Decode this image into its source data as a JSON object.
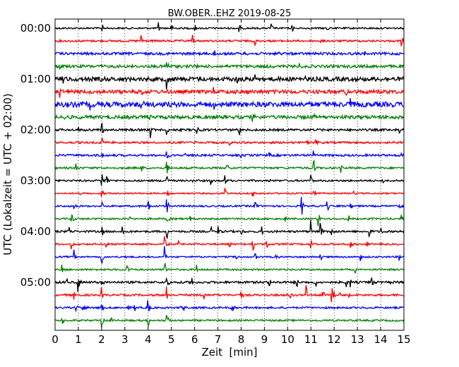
{
  "chart_data": {
    "type": "line",
    "title": "BW.OBER..EHZ 2019-08-25",
    "xlabel": "Zeit  [min]",
    "ylabel": "UTC (Lokalzeit = UTC + 02:00)",
    "xlim": [
      0,
      15
    ],
    "xticks": [
      0,
      1,
      2,
      3,
      4,
      5,
      6,
      7,
      8,
      9,
      10,
      11,
      12,
      13,
      14,
      15
    ],
    "xtick_labels": [
      "0",
      "1",
      "2",
      "3",
      "4",
      "5",
      "6",
      "7",
      "8",
      "9",
      "10",
      "11",
      "12",
      "13",
      "14",
      "15"
    ],
    "yticks": [
      {
        "label": "00:00",
        "trace": 0
      },
      {
        "label": "01:00",
        "trace": 4
      },
      {
        "label": "02:00",
        "trace": 8
      },
      {
        "label": "03:00",
        "trace": 12
      },
      {
        "label": "04:00",
        "trace": 16
      },
      {
        "label": "05:00",
        "trace": 20
      }
    ],
    "grid": {
      "x": true,
      "y": false,
      "style": "dotted"
    },
    "trace_colors": [
      "#000000",
      "#ff0000",
      "#0000ff",
      "#008000"
    ],
    "series": [
      {
        "start": "00:00",
        "color": "#000000",
        "noise": 1.2,
        "events": [
          [
            2.0,
            14
          ],
          [
            4.45,
            10
          ],
          [
            5.0,
            9
          ],
          [
            6.0,
            9
          ],
          [
            7.9,
            12
          ],
          [
            9.3,
            8
          ],
          [
            10.2,
            6
          ],
          [
            11.7,
            5
          ]
        ]
      },
      {
        "start": "00:15",
        "color": "#ff0000",
        "noise": 1.4,
        "events": [
          [
            3.7,
            12
          ],
          [
            5.9,
            10
          ],
          [
            8.6,
            10
          ],
          [
            11.4,
            5
          ],
          [
            14.9,
            9
          ]
        ]
      },
      {
        "start": "00:30",
        "color": "#0000ff",
        "noise": 1.8,
        "events": [
          [
            6.8,
            14
          ],
          [
            8.1,
            8
          ],
          [
            9.6,
            5
          ],
          [
            13.3,
            8
          ]
        ]
      },
      {
        "start": "00:45",
        "color": "#008000",
        "noise": 2.0,
        "events": [
          [
            0.2,
            7
          ],
          [
            3.2,
            6
          ],
          [
            4.8,
            10
          ],
          [
            6.0,
            6
          ],
          [
            10.5,
            6
          ]
        ]
      },
      {
        "start": "01:00",
        "color": "#000000",
        "noise": 3.0,
        "events": [
          [
            0.3,
            10
          ],
          [
            2.0,
            14
          ],
          [
            4.8,
            14
          ],
          [
            7.8,
            12
          ],
          [
            8.6,
            8
          ],
          [
            10.7,
            8
          ]
        ]
      },
      {
        "start": "01:15",
        "color": "#ff0000",
        "noise": 2.6,
        "events": [
          [
            0.2,
            12
          ],
          [
            3.7,
            10
          ],
          [
            6.8,
            8
          ],
          [
            12.5,
            9
          ],
          [
            13.7,
            7
          ]
        ]
      },
      {
        "start": "01:30",
        "color": "#0000ff",
        "noise": 3.6,
        "events": [
          [
            1.5,
            9
          ],
          [
            2.0,
            10
          ],
          [
            3.7,
            8
          ],
          [
            6.8,
            12
          ],
          [
            12.7,
            8
          ]
        ]
      },
      {
        "start": "01:45",
        "color": "#008000",
        "noise": 2.4,
        "events": [
          [
            0.4,
            6
          ],
          [
            4.0,
            10
          ],
          [
            8.5,
            5
          ],
          [
            11.1,
            8
          ]
        ]
      },
      {
        "start": "02:00",
        "color": "#000000",
        "noise": 1.6,
        "events": [
          [
            1.0,
            6
          ],
          [
            2.0,
            14
          ],
          [
            4.1,
            12
          ],
          [
            4.8,
            10
          ],
          [
            6.1,
            6
          ],
          [
            7.9,
            14
          ],
          [
            14.8,
            7
          ]
        ]
      },
      {
        "start": "02:15",
        "color": "#ff0000",
        "noise": 1.4,
        "events": [
          [
            2.0,
            12
          ],
          [
            6.0,
            6
          ],
          [
            7.5,
            7
          ],
          [
            10.8,
            6
          ],
          [
            11.2,
            6
          ]
        ]
      },
      {
        "start": "02:30",
        "color": "#0000ff",
        "noise": 1.5,
        "events": [
          [
            2.0,
            10
          ],
          [
            4.8,
            14
          ],
          [
            5.6,
            6
          ],
          [
            8.0,
            8
          ],
          [
            9.2,
            6
          ],
          [
            11.1,
            7
          ],
          [
            14.9,
            6
          ]
        ]
      },
      {
        "start": "02:45",
        "color": "#008000",
        "noise": 1.3,
        "events": [
          [
            0.9,
            8
          ],
          [
            3.7,
            9
          ],
          [
            4.8,
            14
          ],
          [
            7.4,
            7
          ],
          [
            11.1,
            20
          ],
          [
            12.3,
            6
          ]
        ]
      },
      {
        "start": "03:00",
        "color": "#000000",
        "noise": 1.3,
        "events": [
          [
            2.0,
            16
          ],
          [
            2.2,
            12
          ],
          [
            4.8,
            14
          ],
          [
            5.8,
            10
          ],
          [
            6.7,
            8
          ],
          [
            7.3,
            9
          ],
          [
            9.2,
            7
          ],
          [
            11.0,
            9
          ],
          [
            14.1,
            6
          ]
        ]
      },
      {
        "start": "03:15",
        "color": "#ff0000",
        "noise": 1.0,
        "events": [
          [
            1.0,
            6
          ],
          [
            2.0,
            10
          ],
          [
            4.8,
            14
          ],
          [
            7.3,
            14
          ],
          [
            8.5,
            6
          ],
          [
            11.1,
            8
          ],
          [
            12.8,
            7
          ]
        ]
      },
      {
        "start": "03:30",
        "color": "#0000ff",
        "noise": 1.2,
        "events": [
          [
            0.8,
            9
          ],
          [
            2.0,
            14
          ],
          [
            4.0,
            10
          ],
          [
            4.8,
            16
          ],
          [
            8.6,
            12
          ],
          [
            10.6,
            16
          ],
          [
            11.7,
            14
          ],
          [
            12.7,
            8
          ],
          [
            14.8,
            6
          ]
        ]
      },
      {
        "start": "03:45",
        "color": "#008000",
        "noise": 1.2,
        "events": [
          [
            0.7,
            14
          ],
          [
            3.2,
            6
          ],
          [
            4.8,
            16
          ],
          [
            5.8,
            7
          ],
          [
            9.9,
            6
          ],
          [
            11.3,
            18
          ],
          [
            12.6,
            12
          ],
          [
            14.9,
            6
          ]
        ]
      },
      {
        "start": "04:00",
        "color": "#000000",
        "noise": 1.4,
        "events": [
          [
            0.6,
            10
          ],
          [
            2.0,
            12
          ],
          [
            2.9,
            10
          ],
          [
            4.8,
            14
          ],
          [
            6.7,
            9
          ],
          [
            7.0,
            10
          ],
          [
            8.0,
            9
          ],
          [
            8.9,
            9
          ],
          [
            11.0,
            16
          ],
          [
            11.4,
            16
          ],
          [
            11.9,
            9
          ],
          [
            13.5,
            12
          ],
          [
            14.0,
            10
          ]
        ]
      },
      {
        "start": "04:15",
        "color": "#ff0000",
        "noise": 1.2,
        "events": [
          [
            0.7,
            8
          ],
          [
            2.2,
            8
          ],
          [
            4.7,
            16
          ],
          [
            5.3,
            7
          ],
          [
            7.5,
            7
          ],
          [
            8.5,
            14
          ],
          [
            9.1,
            9
          ],
          [
            11.0,
            8
          ],
          [
            12.7,
            7
          ],
          [
            13.4,
            6
          ]
        ]
      },
      {
        "start": "04:30",
        "color": "#0000ff",
        "noise": 1.1,
        "events": [
          [
            0.8,
            12
          ],
          [
            2.0,
            14
          ],
          [
            3.0,
            7
          ],
          [
            4.7,
            16
          ],
          [
            7.8,
            7
          ],
          [
            8.6,
            9
          ],
          [
            9.5,
            6
          ],
          [
            11.4,
            8
          ],
          [
            13.1,
            10
          ],
          [
            14.8,
            8
          ]
        ]
      },
      {
        "start": "04:45",
        "color": "#008000",
        "noise": 1.2,
        "events": [
          [
            0.3,
            8
          ],
          [
            3.1,
            12
          ],
          [
            4.7,
            16
          ],
          [
            6.1,
            6
          ],
          [
            12.9,
            7
          ]
        ]
      },
      {
        "start": "05:00",
        "color": "#000000",
        "noise": 1.6,
        "events": [
          [
            0.5,
            9
          ],
          [
            1.0,
            14
          ],
          [
            2.0,
            14
          ],
          [
            4.8,
            14
          ],
          [
            5.9,
            8
          ],
          [
            9.2,
            13
          ],
          [
            10.4,
            9
          ],
          [
            11.2,
            9
          ],
          [
            12.5,
            9
          ],
          [
            12.7,
            8
          ],
          [
            13.6,
            12
          ],
          [
            14.3,
            13
          ]
        ]
      },
      {
        "start": "05:15",
        "color": "#ff0000",
        "noise": 1.4,
        "events": [
          [
            0.8,
            8
          ],
          [
            2.0,
            12
          ],
          [
            4.8,
            14
          ],
          [
            6.4,
            9
          ],
          [
            8.0,
            8
          ],
          [
            10.1,
            9
          ],
          [
            10.8,
            14
          ],
          [
            11.5,
            10
          ],
          [
            11.9,
            12
          ],
          [
            12.0,
            13
          ],
          [
            12.2,
            10
          ],
          [
            12.6,
            9
          ]
        ]
      },
      {
        "start": "05:30",
        "color": "#0000ff",
        "noise": 1.3,
        "events": [
          [
            0.9,
            7
          ],
          [
            1.2,
            14
          ],
          [
            2.0,
            12
          ],
          [
            3.1,
            8
          ],
          [
            3.4,
            8
          ],
          [
            4.0,
            14
          ],
          [
            5.3,
            10
          ],
          [
            5.5,
            8
          ],
          [
            7.6,
            14
          ]
        ]
      },
      {
        "start": "05:45",
        "color": "#008000",
        "noise": 1.2,
        "events": [
          [
            0.3,
            14
          ],
          [
            2.0,
            12
          ],
          [
            2.4,
            14
          ],
          [
            4.0,
            16
          ],
          [
            4.8,
            14
          ]
        ]
      }
    ]
  }
}
